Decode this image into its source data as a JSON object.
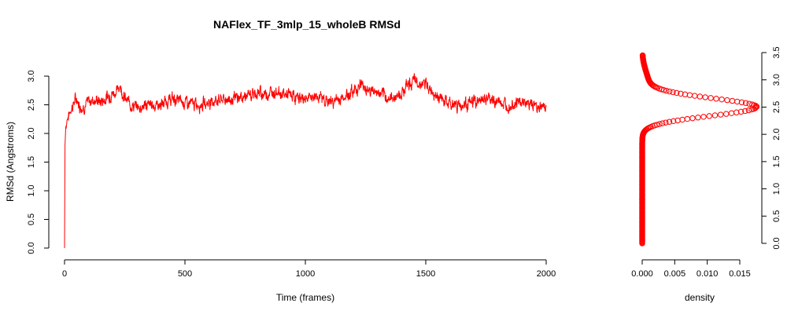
{
  "chart_data": [
    {
      "type": "line",
      "title": "NAFlex_TF_3mlp_15_wholeB RMSd",
      "xlabel": "Time (frames)",
      "ylabel": "RMSd (Angstroms)",
      "xlim": [
        0,
        2000
      ],
      "ylim": [
        0,
        3.0
      ],
      "xticks": [
        "0",
        "500",
        "1000",
        "1500",
        "2000"
      ],
      "yticks": [
        "0.0",
        "0.5",
        "1.0",
        "1.5",
        "2.0",
        "2.5",
        "3.0"
      ],
      "series_color": "#ff0000",
      "grid": false,
      "series": [
        {
          "x": [
            0,
            2,
            5,
            10,
            15,
            20,
            30,
            40,
            50,
            60,
            80,
            100,
            120,
            150,
            180,
            200,
            220,
            230,
            250,
            280,
            300,
            350,
            400,
            450,
            500,
            550,
            600,
            650,
            700,
            750,
            800,
            850,
            880,
            900,
            950,
            1000,
            1050,
            1100,
            1150,
            1200,
            1230,
            1250,
            1300,
            1350,
            1400,
            1420,
            1450,
            1500,
            1550,
            1600,
            1650,
            1700,
            1750,
            1800,
            1850,
            1900,
            1950,
            2000
          ],
          "y": [
            0.0,
            1.8,
            2.1,
            2.25,
            2.3,
            2.35,
            2.45,
            2.55,
            2.6,
            2.5,
            2.45,
            2.55,
            2.6,
            2.55,
            2.65,
            2.7,
            2.75,
            2.85,
            2.6,
            2.5,
            2.45,
            2.5,
            2.5,
            2.6,
            2.55,
            2.5,
            2.55,
            2.6,
            2.6,
            2.65,
            2.7,
            2.7,
            2.75,
            2.7,
            2.65,
            2.6,
            2.65,
            2.55,
            2.6,
            2.75,
            2.85,
            2.8,
            2.7,
            2.6,
            2.7,
            2.85,
            2.9,
            2.85,
            2.65,
            2.5,
            2.5,
            2.55,
            2.6,
            2.55,
            2.5,
            2.55,
            2.5,
            2.45
          ]
        }
      ]
    },
    {
      "type": "scatter",
      "xlabel": "density",
      "xlim": [
        0,
        0.017
      ],
      "ylim": [
        0,
        3.5
      ],
      "xticks": [
        "0.000",
        "0.005",
        "0.010",
        "0.015"
      ],
      "yticks": [
        "0.0",
        "0.5",
        "1.0",
        "1.5",
        "2.0",
        "2.5",
        "3.0",
        "3.5"
      ],
      "series_color": "#ff0000",
      "peak_value": 2.5,
      "peak_density": 0.0175
    }
  ]
}
